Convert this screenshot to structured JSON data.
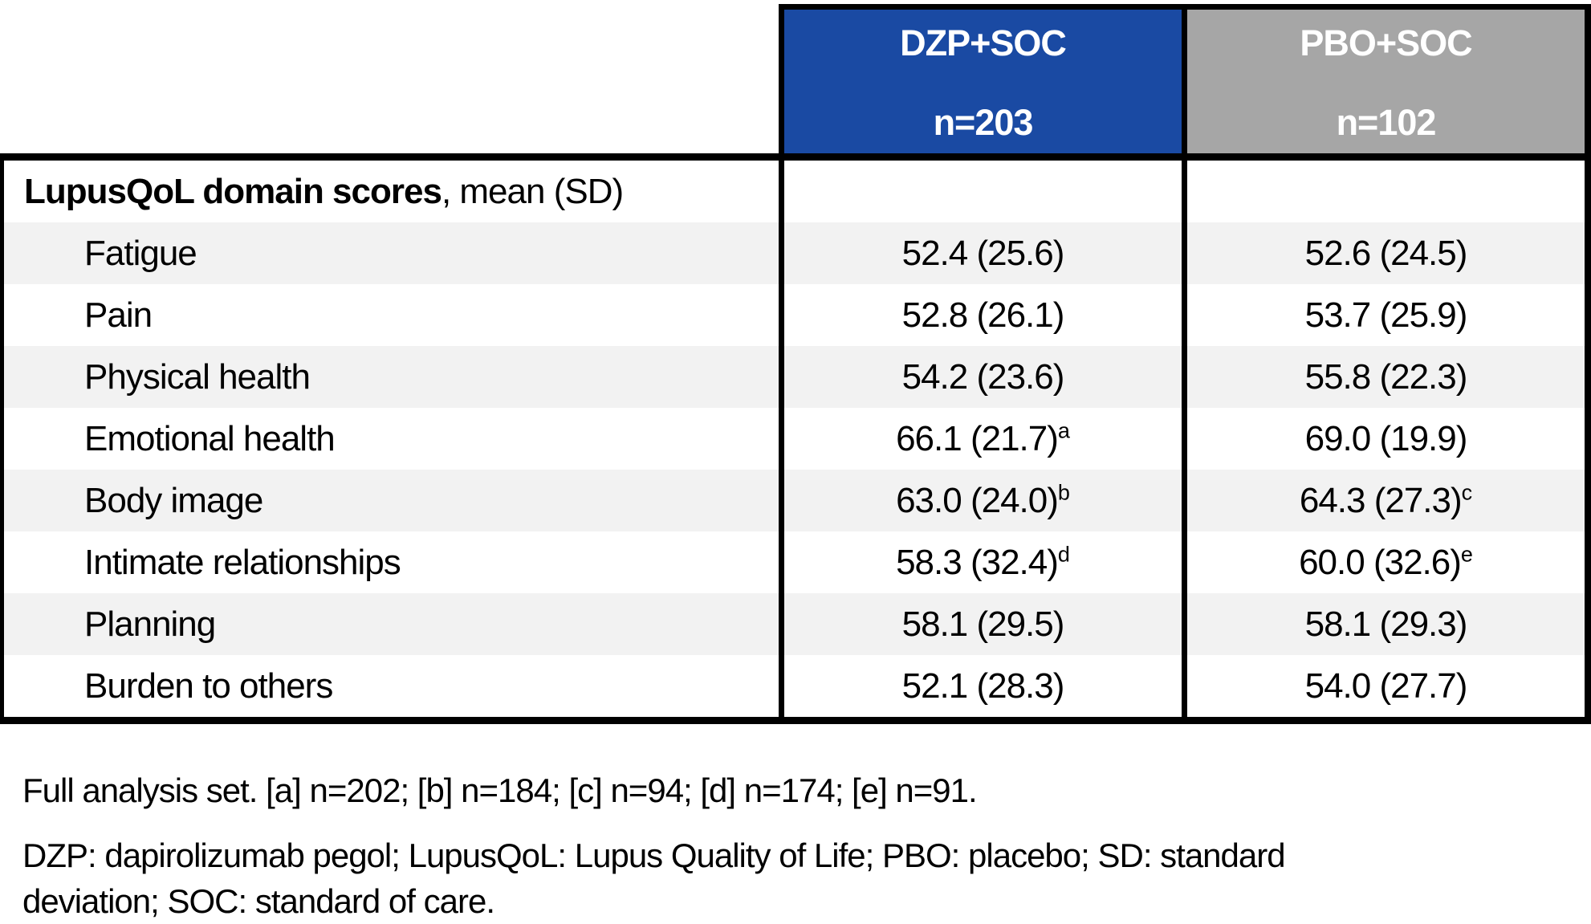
{
  "colors": {
    "dzp_header_bg": "#1a4aa3",
    "pbo_header_bg": "#a6a6a6",
    "header_text": "#ffffff",
    "stripe_bg": "#f2f2f2",
    "border": "#000000",
    "body_text": "#000000"
  },
  "header": {
    "dzp": {
      "title": "DZP+SOC",
      "n": "n=203"
    },
    "pbo": {
      "title": "PBO+SOC",
      "n": "n=102"
    }
  },
  "section": {
    "bold": "LupusQoL domain scores",
    "rest": ", mean (SD)"
  },
  "rows": [
    {
      "label": "Fatigue",
      "dzp": "52.4 (25.6)",
      "dzp_sup": "",
      "pbo": "52.6 (24.5)",
      "pbo_sup": ""
    },
    {
      "label": "Pain",
      "dzp": "52.8 (26.1)",
      "dzp_sup": "",
      "pbo": "53.7 (25.9)",
      "pbo_sup": ""
    },
    {
      "label": "Physical health",
      "dzp": "54.2 (23.6)",
      "dzp_sup": "",
      "pbo": "55.8 (22.3)",
      "pbo_sup": ""
    },
    {
      "label": "Emotional health",
      "dzp": "66.1 (21.7)",
      "dzp_sup": "a",
      "pbo": "69.0 (19.9)",
      "pbo_sup": ""
    },
    {
      "label": "Body image",
      "dzp": "63.0 (24.0)",
      "dzp_sup": "b",
      "pbo": "64.3 (27.3)",
      "pbo_sup": "c"
    },
    {
      "label": "Intimate relationships",
      "dzp": "58.3 (32.4)",
      "dzp_sup": "d",
      "pbo": "60.0 (32.6)",
      "pbo_sup": "e"
    },
    {
      "label": "Planning",
      "dzp": "58.1 (29.5)",
      "dzp_sup": "",
      "pbo": "58.1 (29.3)",
      "pbo_sup": ""
    },
    {
      "label": "Burden to others",
      "dzp": "52.1 (28.3)",
      "dzp_sup": "",
      "pbo": "54.0 (27.7)",
      "pbo_sup": ""
    }
  ],
  "footnotes": {
    "line1": "Full analysis set. [a] n=202; [b] n=184; [c] n=94; [d] n=174; [e] n=91.",
    "line2": "DZP: dapirolizumab pegol; LupusQoL: Lupus Quality of Life; PBO: placebo; SD: standard",
    "line3": "deviation; SOC: standard of care."
  }
}
